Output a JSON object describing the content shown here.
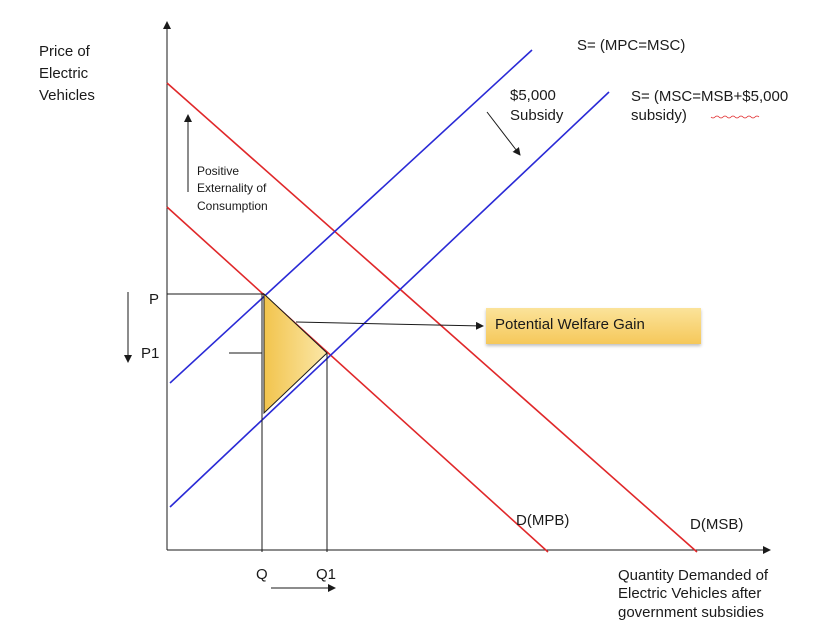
{
  "axes": {
    "y_label": [
      "Price of",
      "Electric",
      "Vehicles"
    ],
    "x_label": [
      "Quantity Demanded of",
      "Electric Vehicles after",
      "government subsidies"
    ]
  },
  "curves": {
    "supply_original": "S= (MPC=MSC)",
    "supply_subsidy": [
      "S= (MSC=MSB+$5,000",
      "subsidy)"
    ],
    "demand_private": "D(MPB)",
    "demand_social": "D(MSB)"
  },
  "annotations": {
    "subsidy": [
      "$5,000",
      "Subsidy"
    ],
    "externality": [
      "Positive",
      "Externality of",
      "Consumption"
    ],
    "welfare_gain": "Potential Welfare Gain"
  },
  "ticks": {
    "price_high": "P",
    "price_low": "P1",
    "quantity_low": "Q",
    "quantity_high": "Q1"
  },
  "colors": {
    "supply": "#2a2ad6",
    "demand": "#e0282a",
    "welfare_fill_top": "#fbe7a8",
    "welfare_fill_bottom": "#f2c44d",
    "axis": "#1a1a1a"
  }
}
